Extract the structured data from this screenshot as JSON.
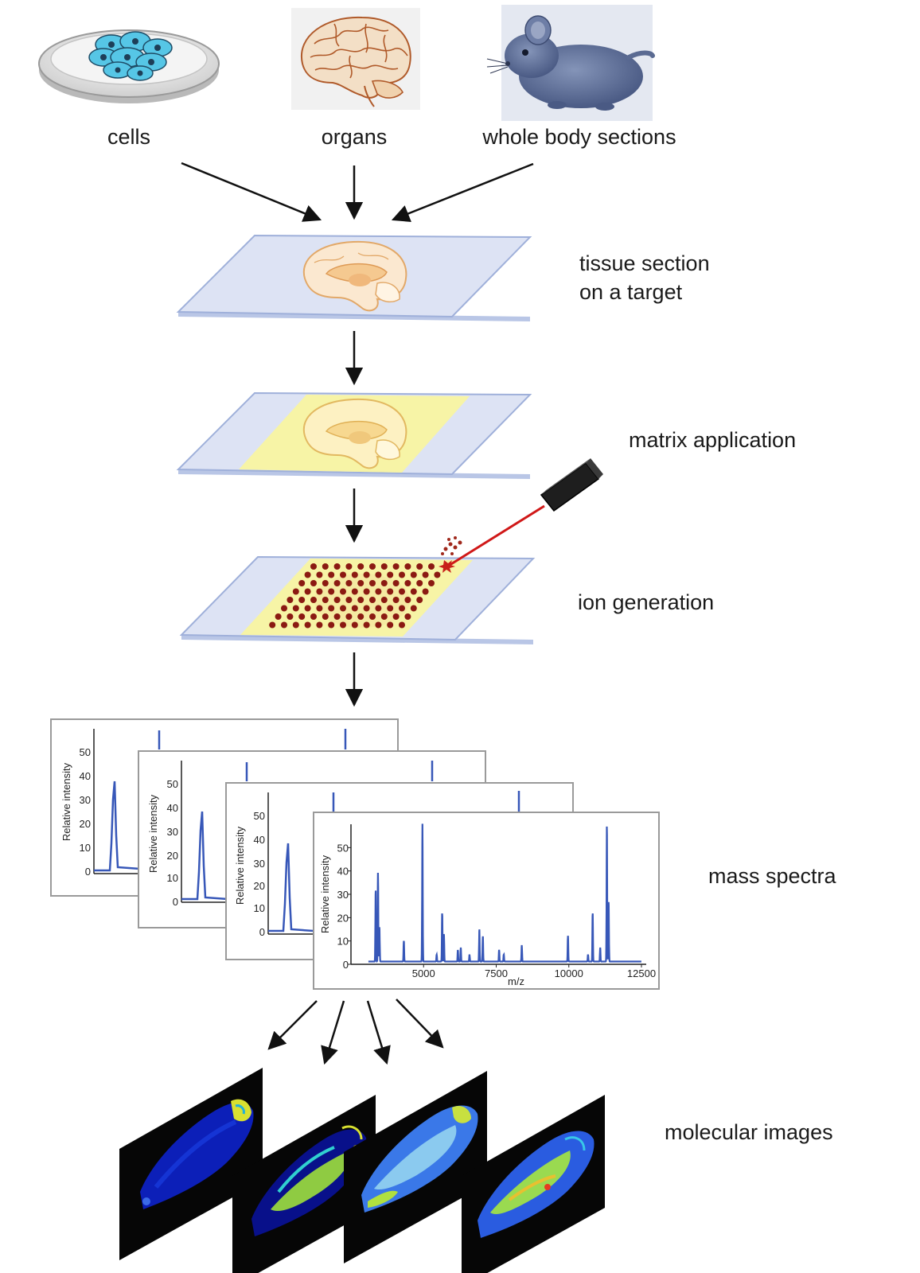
{
  "sources": {
    "cells_label": "cells",
    "organs_label": "organs",
    "whole_body_label": "whole body sections"
  },
  "steps": {
    "tissue_section_line1": "tissue section",
    "tissue_section_line2": "on a target",
    "matrix_application": "matrix application",
    "ion_generation": "ion generation",
    "mass_spectra": "mass spectra",
    "molecular_images": "molecular images"
  },
  "colors": {
    "slide": "#dde3f4",
    "slide_edge": "#9fb0da",
    "matrix": "#f7f4a6",
    "droplet": "#8b1a12",
    "laser": "#d01818",
    "spectrum": "#3757b8",
    "brain": "#f0c48a"
  },
  "chart_data": {
    "type": "line",
    "xlabel": "m/z",
    "ylabel": "Relative intensity",
    "xlim": [
      2500,
      12500
    ],
    "ylim": [
      0,
      60
    ],
    "x_ticks": [
      "5000",
      "7500",
      "10000",
      "12500"
    ],
    "y_ticks": [
      "0",
      "10",
      "20",
      "30",
      "40",
      "50"
    ],
    "series": [
      {
        "peaks": [
          {
            "mz": 3350,
            "intensity": 31
          },
          {
            "mz": 3430,
            "intensity": 38
          },
          {
            "mz": 3480,
            "intensity": 15
          },
          {
            "mz": 4320,
            "intensity": 9
          },
          {
            "mz": 4960,
            "intensity": 59
          },
          {
            "mz": 5450,
            "intensity": 3
          },
          {
            "mz": 5640,
            "intensity": 21
          },
          {
            "mz": 5700,
            "intensity": 12
          },
          {
            "mz": 6180,
            "intensity": 5
          },
          {
            "mz": 6280,
            "intensity": 6
          },
          {
            "mz": 6580,
            "intensity": 3
          },
          {
            "mz": 6920,
            "intensity": 14
          },
          {
            "mz": 7040,
            "intensity": 11
          },
          {
            "mz": 7600,
            "intensity": 5
          },
          {
            "mz": 7760,
            "intensity": 3
          },
          {
            "mz": 8380,
            "intensity": 7
          },
          {
            "mz": 9970,
            "intensity": 11
          },
          {
            "mz": 10660,
            "intensity": 3
          },
          {
            "mz": 10820,
            "intensity": 21
          },
          {
            "mz": 11080,
            "intensity": 6
          },
          {
            "mz": 11310,
            "intensity": 59
          },
          {
            "mz": 11370,
            "intensity": 26
          }
        ]
      }
    ]
  }
}
